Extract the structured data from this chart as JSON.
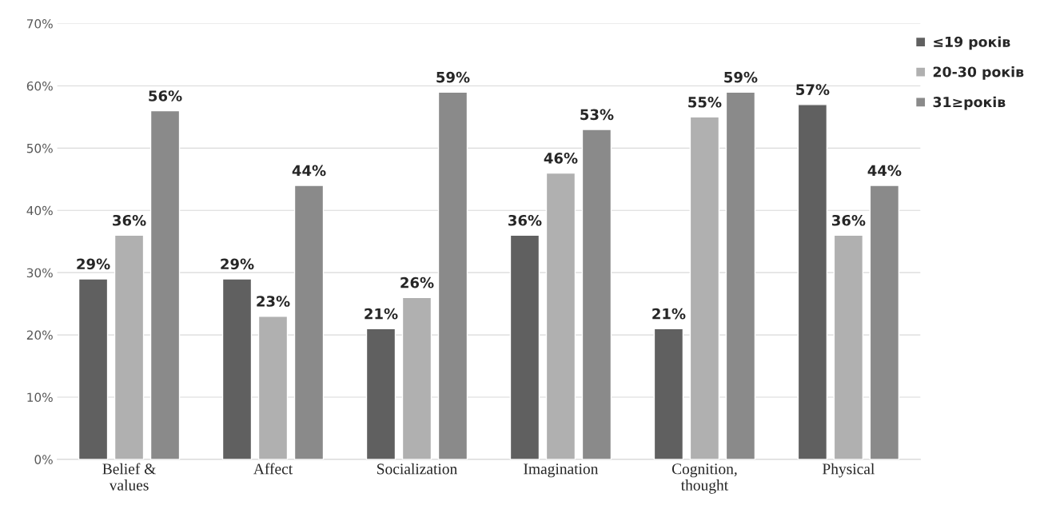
{
  "chart_data": {
    "type": "bar",
    "categories": [
      "Belief &\nvalues",
      "Affect",
      "Socialization",
      "Imagination",
      "Cognition,\nthought",
      "Physical"
    ],
    "series": [
      {
        "name": "≤19 років",
        "color": "#606060",
        "values": [
          29,
          29,
          21,
          36,
          21,
          57
        ],
        "value_labels": [
          "29%",
          "29%",
          "21%",
          "36%",
          "21%",
          "57%"
        ]
      },
      {
        "name": "20-30 років",
        "color": "#b0b0b0",
        "values": [
          36,
          23,
          26,
          46,
          55,
          36
        ],
        "value_labels": [
          "36%",
          "23%",
          "26%",
          "46%",
          "55%",
          "36%"
        ]
      },
      {
        "name": "31≥років",
        "color": "#8a8a8a",
        "values": [
          56,
          44,
          59,
          53,
          59,
          44
        ],
        "value_labels": [
          "56%",
          "44%",
          "59%",
          "53%",
          "59%",
          "44%"
        ]
      }
    ],
    "ylim": [
      0,
      70
    ],
    "yticks": [
      {
        "value": 0,
        "label": "0%"
      },
      {
        "value": 10,
        "label": "10%"
      },
      {
        "value": 20,
        "label": "20%"
      },
      {
        "value": 30,
        "label": "30%"
      },
      {
        "value": 40,
        "label": "40%"
      },
      {
        "value": 50,
        "label": "50%"
      },
      {
        "value": 60,
        "label": "60%"
      },
      {
        "value": 70,
        "label": "70%"
      }
    ],
    "grid": "y",
    "legend": "top right"
  }
}
